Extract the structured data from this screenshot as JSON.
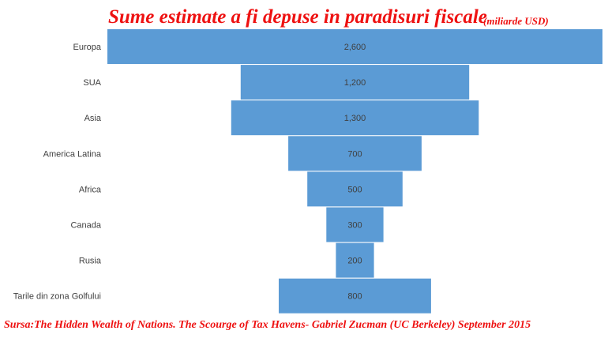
{
  "chart_data": {
    "type": "bar",
    "orientation": "horizontal",
    "style": "funnel",
    "title": "Sume estimate a fi depuse in paradisuri fiscale",
    "subtitle": "(miliarde USD)",
    "categories": [
      "Europa",
      "SUA",
      "Asia",
      "America Latina",
      "Africa",
      "Canada",
      "Rusia",
      "Tarile din zona Golfului"
    ],
    "values": [
      2600,
      1200,
      1300,
      700,
      500,
      300,
      200,
      800
    ],
    "value_labels": [
      "2,600",
      "1,200",
      "1,300",
      "700",
      "500",
      "300",
      "200",
      "800"
    ],
    "bar_color": "#5b9bd5",
    "grid": false,
    "legend": "none"
  },
  "source": "Sursa:The Hidden Wealth of Nations. The Scourge of Tax Havens- Gabriel Zucman (UC Berkeley) September 2015",
  "colors": {
    "title": "#ee1111",
    "bar": "#5b9bd5",
    "text": "#404040"
  }
}
